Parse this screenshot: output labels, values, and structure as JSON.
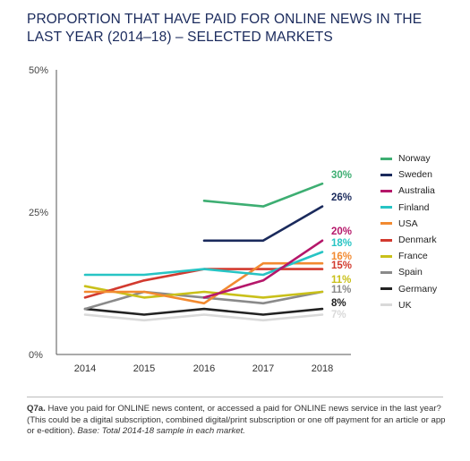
{
  "title": "PROPORTION THAT HAVE PAID FOR ONLINE NEWS IN THE LAST YEAR (2014–18) – SELECTED MARKETS",
  "footnote": {
    "q_label": "Q7a.",
    "question": " Have you paid for ONLINE news content, or accessed a paid for ONLINE news service in the last year? (This could be a digital subscription, combined digital/print subscription or one off payment for an article or app or e-edition). ",
    "base_label": "Base:",
    "base_text": " Total 2014-18 sample in each market."
  },
  "chart_data": {
    "type": "line",
    "x": [
      "2014",
      "2015",
      "2016",
      "2017",
      "2018"
    ],
    "ylim": [
      0,
      50
    ],
    "y_ticks": [
      0,
      25,
      50
    ],
    "y_tick_labels": [
      "0%",
      "25%",
      "50%"
    ],
    "grid": false,
    "legend_position": "right",
    "series": [
      {
        "name": "Norway",
        "color": "#3dae72",
        "values": [
          null,
          null,
          27,
          26,
          30
        ],
        "end_label": "30%"
      },
      {
        "name": "Sweden",
        "color": "#1a2a5c",
        "values": [
          null,
          null,
          20,
          20,
          26
        ],
        "end_label": "26%"
      },
      {
        "name": "Australia",
        "color": "#b5176a",
        "values": [
          null,
          null,
          10,
          13,
          20
        ],
        "end_label": "20%"
      },
      {
        "name": "Finland",
        "color": "#27c4c4",
        "values": [
          14,
          14,
          15,
          14,
          18
        ],
        "end_label": "18%"
      },
      {
        "name": "USA",
        "color": "#f28a30",
        "values": [
          11,
          11,
          9,
          16,
          16
        ],
        "end_label": "16%"
      },
      {
        "name": "Denmark",
        "color": "#d23a2f",
        "values": [
          10,
          13,
          15,
          15,
          15
        ],
        "end_label": "15%"
      },
      {
        "name": "France",
        "color": "#c9c01a",
        "values": [
          12,
          10,
          11,
          10,
          11
        ],
        "end_label": "11%"
      },
      {
        "name": "Spain",
        "color": "#8a8a8a",
        "values": [
          8,
          11,
          10,
          9,
          11
        ],
        "end_label": "11%"
      },
      {
        "name": "Germany",
        "color": "#222222",
        "values": [
          8,
          7,
          8,
          7,
          8
        ],
        "end_label": "8%"
      },
      {
        "name": "UK",
        "color": "#d9d9d9",
        "values": [
          7,
          6,
          7,
          6,
          7
        ],
        "end_label": "7%"
      }
    ]
  }
}
